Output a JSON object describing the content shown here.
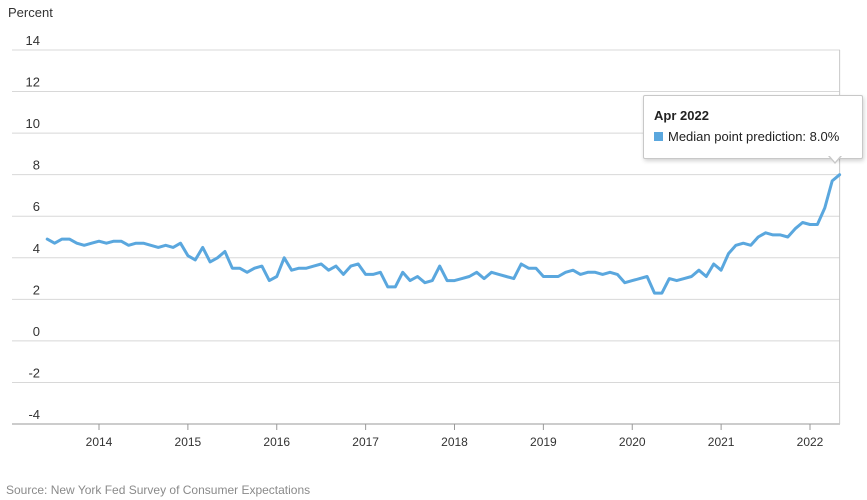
{
  "chart_data": {
    "type": "line",
    "ylabel": "Percent",
    "ylim": [
      -4,
      14
    ],
    "yticks": [
      "-4",
      "-2",
      "0",
      "2",
      "4",
      "6",
      "8",
      "10",
      "12",
      "14"
    ],
    "xticks": [
      "2014",
      "2015",
      "2016",
      "2017",
      "2018",
      "2019",
      "2020",
      "2021",
      "2022"
    ],
    "grid": true,
    "source": "Source: New York Fed Survey of Consumer Expectations",
    "series": [
      {
        "name": "Median point prediction",
        "color": "#5aa7de",
        "start": "2013-06",
        "values": [
          4.9,
          4.7,
          4.9,
          4.9,
          4.7,
          4.6,
          4.7,
          4.8,
          4.7,
          4.8,
          4.8,
          4.6,
          4.7,
          4.7,
          4.6,
          4.5,
          4.6,
          4.5,
          4.7,
          4.1,
          3.9,
          4.5,
          3.8,
          4.0,
          4.3,
          3.5,
          3.5,
          3.3,
          3.5,
          3.6,
          2.9,
          3.1,
          4.0,
          3.4,
          3.5,
          3.5,
          3.6,
          3.7,
          3.4,
          3.6,
          3.2,
          3.6,
          3.7,
          3.2,
          3.2,
          3.3,
          2.6,
          2.6,
          3.3,
          2.9,
          3.1,
          2.8,
          2.9,
          3.6,
          2.9,
          2.9,
          3.0,
          3.1,
          3.3,
          3.0,
          3.3,
          3.2,
          3.1,
          3.0,
          3.7,
          3.5,
          3.5,
          3.1,
          3.1,
          3.1,
          3.3,
          3.4,
          3.2,
          3.3,
          3.3,
          3.2,
          3.3,
          3.2,
          2.8,
          2.9,
          3.0,
          3.1,
          2.3,
          2.3,
          3.0,
          2.9,
          3.0,
          3.1,
          3.4,
          3.1,
          3.7,
          3.4,
          4.2,
          4.6,
          4.7,
          4.6,
          5.0,
          5.2,
          5.1,
          5.1,
          5.0,
          5.4,
          5.7,
          5.6,
          5.6,
          6.4,
          7.7,
          8.0
        ]
      }
    ],
    "tooltip": {
      "title": "Apr 2022",
      "label": "Median point prediction: 8.0%"
    }
  }
}
